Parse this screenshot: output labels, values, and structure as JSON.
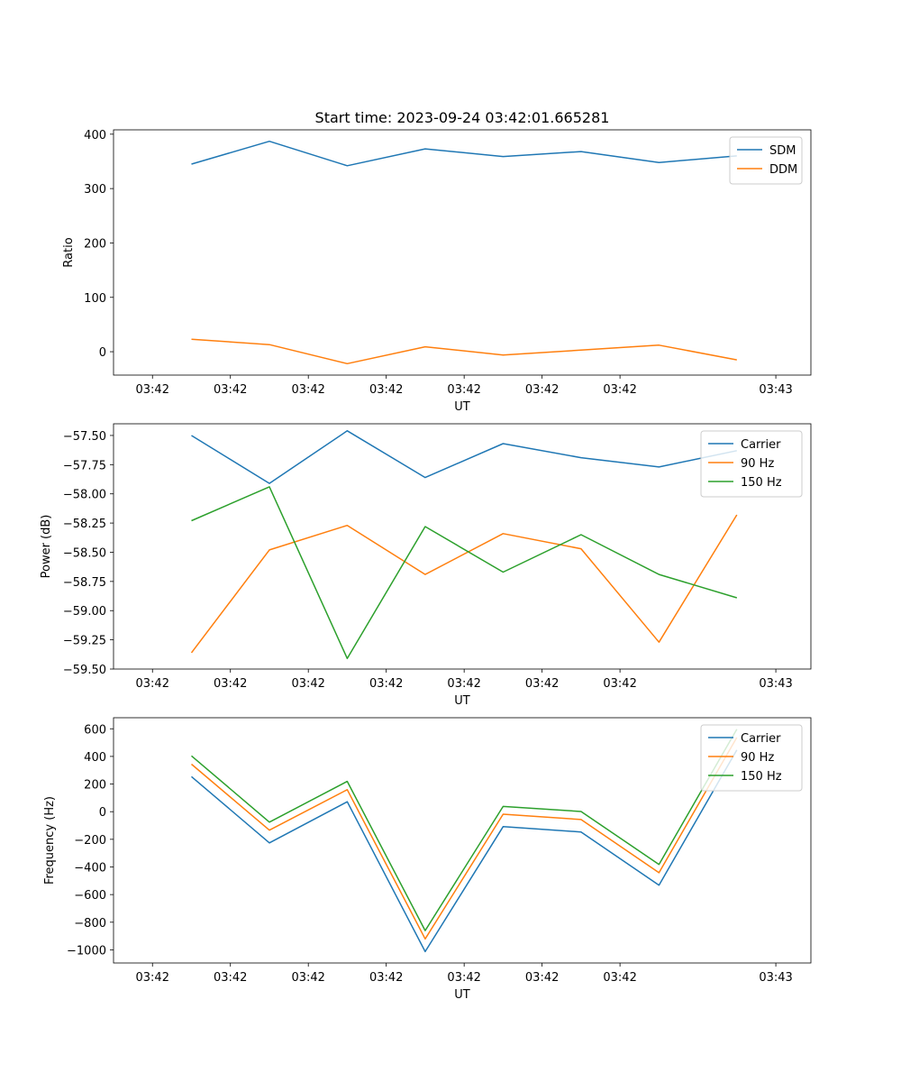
{
  "title": "Start time: 2023-09-24 03:42:01.665281",
  "colors": {
    "C0": "#1f77b4",
    "C1": "#ff7f0e",
    "C2": "#2ca02c"
  },
  "chart_data": [
    {
      "type": "line",
      "title": "Start time: 2023-09-24 03:42:01.665281",
      "xlabel": "UT",
      "ylabel": "Ratio",
      "x": [
        0.5,
        1.5,
        2.5,
        3.5,
        4.5,
        5.5,
        6.5,
        7.5
      ],
      "xlim": [
        -0.5,
        8.45
      ],
      "ylim": [
        -43,
        408
      ],
      "xticks": [
        0,
        2,
        4,
        6,
        8
      ],
      "xtick_labels": [
        "03:42",
        "03:42",
        "03:42",
        "03:42",
        "03:42",
        "03:42",
        "03:42",
        "03:43"
      ],
      "xtick_positions": [
        0,
        1,
        2,
        3,
        4,
        5,
        6,
        8
      ],
      "yticks": [
        0,
        100,
        200,
        300,
        400
      ],
      "ytick_labels": [
        "0",
        "100",
        "200",
        "300",
        "400"
      ],
      "legend_position": "top-right",
      "series": [
        {
          "name": "SDM",
          "color": "#1f77b4",
          "values": [
            345,
            387,
            342,
            373,
            359,
            368,
            348,
            360
          ]
        },
        {
          "name": "DDM",
          "color": "#ff7f0e",
          "values": [
            23,
            13,
            -22,
            9,
            -6,
            3,
            12,
            -15
          ]
        }
      ]
    },
    {
      "type": "line",
      "xlabel": "UT",
      "ylabel": "Power (dB)",
      "x": [
        0.5,
        1.5,
        2.5,
        3.5,
        4.5,
        5.5,
        6.5,
        7.5
      ],
      "xlim": [
        -0.5,
        8.45
      ],
      "ylim": [
        -59.5,
        -57.4
      ],
      "xtick_labels": [
        "03:42",
        "03:42",
        "03:42",
        "03:42",
        "03:42",
        "03:42",
        "03:42",
        "03:43"
      ],
      "xtick_positions": [
        0,
        1,
        2,
        3,
        4,
        5,
        6,
        8
      ],
      "yticks": [
        -57.5,
        -57.75,
        -58.0,
        -58.25,
        -58.5,
        -58.75,
        -59.0,
        -59.25,
        -59.5
      ],
      "ytick_labels": [
        "−57.50",
        "−57.75",
        "−58.00",
        "−58.25",
        "−58.50",
        "−58.75",
        "−59.00",
        "−59.25",
        "−59.50"
      ],
      "legend_position": "top-right",
      "series": [
        {
          "name": "Carrier",
          "color": "#1f77b4",
          "values": [
            -57.5,
            -57.91,
            -57.46,
            -57.86,
            -57.57,
            -57.69,
            -57.77,
            -57.63
          ]
        },
        {
          "name": "90 Hz",
          "color": "#ff7f0e",
          "values": [
            -59.36,
            -58.48,
            -58.27,
            -58.69,
            -58.34,
            -58.47,
            -59.27,
            -58.18
          ]
        },
        {
          "name": "150 Hz",
          "color": "#2ca02c",
          "values": [
            -58.23,
            -57.94,
            -59.41,
            -58.28,
            -58.67,
            -58.35,
            -58.69,
            -58.89
          ]
        }
      ]
    },
    {
      "type": "line",
      "xlabel": "UT",
      "ylabel": "Frequency (Hz)",
      "x": [
        0.5,
        1.5,
        2.5,
        3.5,
        4.5,
        5.5,
        6.5,
        7.5
      ],
      "xlim": [
        -0.5,
        8.45
      ],
      "ylim": [
        -1095,
        680
      ],
      "xtick_labels": [
        "03:42",
        "03:42",
        "03:42",
        "03:42",
        "03:42",
        "03:42",
        "03:42",
        "03:43"
      ],
      "xtick_positions": [
        0,
        1,
        2,
        3,
        4,
        5,
        6,
        8
      ],
      "yticks": [
        600,
        400,
        200,
        0,
        -200,
        -400,
        -600,
        -800,
        -1000
      ],
      "ytick_labels": [
        "600",
        "400",
        "200",
        "0",
        "−200",
        "−400",
        "−600",
        "−800",
        "−1000"
      ],
      "legend_position": "top-right",
      "series": [
        {
          "name": "Carrier",
          "color": "#1f77b4",
          "values": [
            254,
            -226,
            72,
            -1013,
            -108,
            -147,
            -532,
            447
          ]
        },
        {
          "name": "90 Hz",
          "color": "#ff7f0e",
          "values": [
            344,
            -134,
            159,
            -921,
            -18,
            -57,
            -442,
            537
          ]
        },
        {
          "name": "150 Hz",
          "color": "#2ca02c",
          "values": [
            404,
            -76,
            219,
            -861,
            38,
            1,
            -382,
            597
          ]
        }
      ]
    }
  ]
}
